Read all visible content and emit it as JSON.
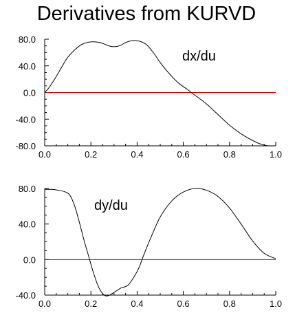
{
  "title": "Derivatives from KURVD",
  "colors": {
    "curve": "#000000",
    "zero_line": "#cc0000",
    "axes": "#000000",
    "background": "#ffffff"
  },
  "chart_data": [
    {
      "type": "line",
      "annotation": "dx/du",
      "annotation_placement": "upper-right",
      "xlim": [
        0.0,
        1.0
      ],
      "ylim": [
        -80.0,
        80.0
      ],
      "xticks": [
        "0.0",
        "0.2",
        "0.4",
        "0.6",
        "0.8",
        "1.0"
      ],
      "yticks": [
        "80.0",
        "40.0",
        "0.0",
        "-40.0",
        "-80.0"
      ],
      "grid": false,
      "zero_line": true,
      "x": [
        0.0,
        0.02,
        0.05,
        0.08,
        0.1,
        0.13,
        0.16,
        0.2,
        0.24,
        0.27,
        0.29,
        0.31,
        0.33,
        0.35,
        0.38,
        0.41,
        0.44,
        0.47,
        0.5,
        0.54,
        0.58,
        0.62,
        0.65,
        0.7,
        0.75,
        0.8,
        0.85,
        0.9,
        0.94,
        0.97,
        1.0
      ],
      "y": [
        0.0,
        8.0,
        24.0,
        42.0,
        53.0,
        64.0,
        72.0,
        76.0,
        75.0,
        71.0,
        69.0,
        69.0,
        71.0,
        75.0,
        78.0,
        77.0,
        72.0,
        60.0,
        45.0,
        28.0,
        14.0,
        4.0,
        -4.0,
        -17.0,
        -33.0,
        -49.0,
        -62.0,
        -72.0,
        -78.0,
        -80.0,
        -80.0
      ]
    },
    {
      "type": "line",
      "annotation": "dy/du",
      "annotation_placement": "upper-left",
      "xlim": [
        0.0,
        1.0
      ],
      "ylim": [
        -40.0,
        80.0
      ],
      "xticks": [
        "0.0",
        "0.2",
        "0.4",
        "0.6",
        "0.8",
        "1.0"
      ],
      "yticks": [
        "80.0",
        "40.0",
        "0.0",
        "-40.0"
      ],
      "grid": false,
      "zero_line": true,
      "x": [
        0.0,
        0.03,
        0.06,
        0.09,
        0.11,
        0.13,
        0.15,
        0.17,
        0.19,
        0.21,
        0.23,
        0.25,
        0.27,
        0.3,
        0.33,
        0.36,
        0.39,
        0.41,
        0.43,
        0.46,
        0.5,
        0.55,
        0.6,
        0.65,
        0.7,
        0.75,
        0.8,
        0.85,
        0.9,
        0.95,
        1.0
      ],
      "y": [
        79.0,
        79.0,
        78.0,
        76.0,
        72.0,
        60.0,
        42.0,
        22.0,
        4.0,
        -14.0,
        -29.0,
        -38.0,
        -41.0,
        -37.0,
        -32.0,
        -29.0,
        -18.0,
        -8.0,
        6.0,
        25.0,
        48.0,
        66.0,
        76.0,
        80.0,
        78.0,
        71.0,
        58.0,
        40.0,
        21.0,
        7.0,
        1.0
      ]
    }
  ]
}
